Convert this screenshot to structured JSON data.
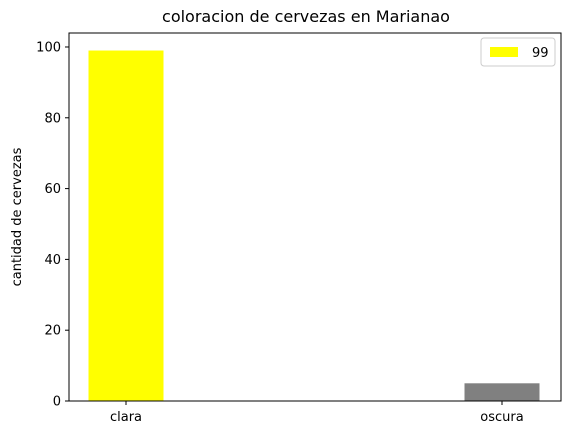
{
  "chart_data": {
    "type": "bar",
    "title": "coloracion de cervezas en Marianao",
    "xlabel": "",
    "ylabel": "cantidad de cervezas",
    "categories": [
      "clara",
      "oscura"
    ],
    "values": [
      99,
      5
    ],
    "bar_colors": [
      "#ffff00",
      "#808080"
    ],
    "ylim": [
      0,
      103.95
    ],
    "yticks": [
      0,
      20,
      40,
      60,
      80,
      100
    ],
    "grid": false,
    "legend": {
      "position": "top-right",
      "entries": [
        {
          "label": "99",
          "color": "#ffff00"
        }
      ]
    }
  }
}
